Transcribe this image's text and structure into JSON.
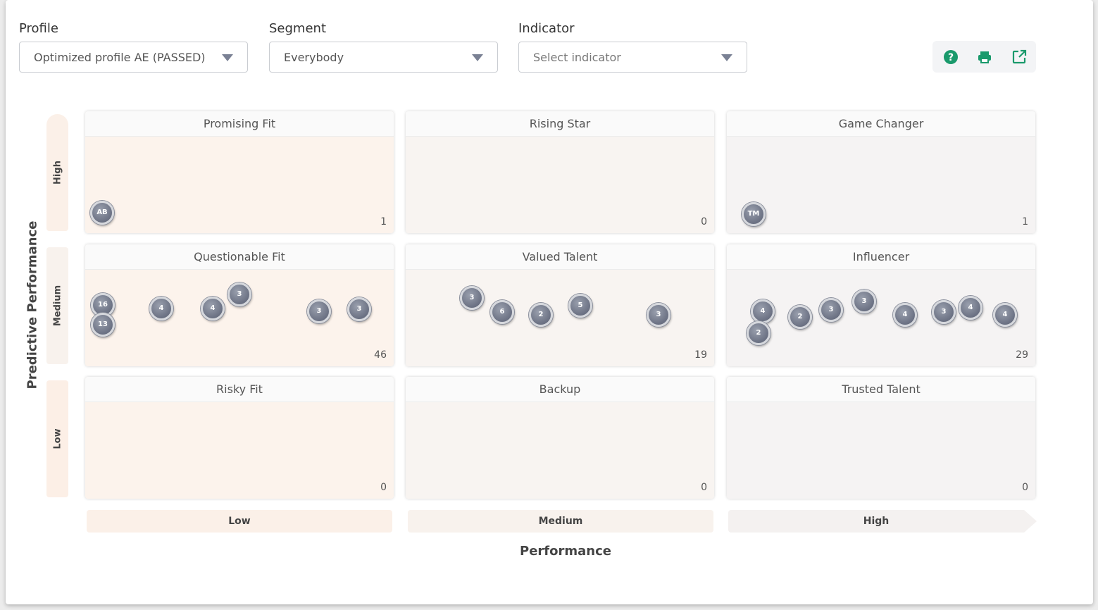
{
  "filters": {
    "profile": {
      "label": "Profile",
      "value": "Optimized profile AE (PASSED)"
    },
    "segment": {
      "label": "Segment",
      "value": "Everybody"
    },
    "indicator": {
      "label": "Indicator",
      "placeholder": "Select indicator"
    }
  },
  "toolbar": {
    "icons": [
      "help-icon",
      "print-icon",
      "export-icon"
    ],
    "accent": "#1a9a6c"
  },
  "axes": {
    "y_title": "Predictive Performance",
    "y_levels": [
      "High",
      "Medium",
      "Low"
    ],
    "x_title": "Performance",
    "x_levels": [
      "Low",
      "Medium",
      "High"
    ]
  },
  "grid": {
    "promising_fit": {
      "title": "Promising Fit",
      "count": "1",
      "bubbles": [
        "AB"
      ]
    },
    "rising_star": {
      "title": "Rising Star",
      "count": "0",
      "bubbles": []
    },
    "game_changer": {
      "title": "Game Changer",
      "count": "1",
      "bubbles": [
        "TM"
      ]
    },
    "questionable_fit": {
      "title": "Questionable Fit",
      "count": "46",
      "bubbles": [
        "16",
        "13",
        "4",
        "4",
        "3",
        "3",
        "3"
      ]
    },
    "valued_talent": {
      "title": "Valued Talent",
      "count": "19",
      "bubbles": [
        "3",
        "6",
        "2",
        "5",
        "3"
      ]
    },
    "influencer": {
      "title": "Influencer",
      "count": "29",
      "bubbles": [
        "4",
        "2",
        "2",
        "3",
        "3",
        "4",
        "3",
        "4",
        "4"
      ]
    },
    "risky_fit": {
      "title": "Risky Fit",
      "count": "0",
      "bubbles": []
    },
    "backup": {
      "title": "Backup",
      "count": "0",
      "bubbles": []
    },
    "trusted_talent": {
      "title": "Trusted Talent",
      "count": "0",
      "bubbles": []
    }
  }
}
